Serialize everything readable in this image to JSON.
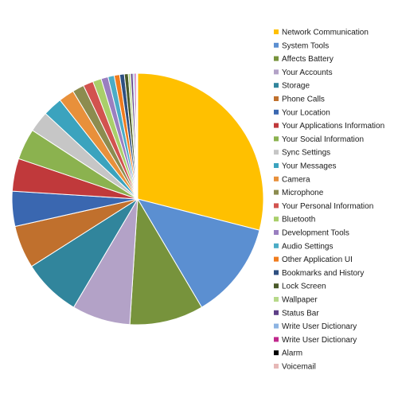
{
  "chart_data": {
    "type": "pie",
    "title": "",
    "legend_position": "right",
    "start_angle_deg": 0,
    "direction": "clockwise",
    "series": [
      {
        "name": "Network Communication",
        "value": 29.0,
        "color": "#FFC000"
      },
      {
        "name": "System Tools",
        "value": 12.5,
        "color": "#5B8FD1"
      },
      {
        "name": "Affects Battery",
        "value": 9.5,
        "color": "#77933C"
      },
      {
        "name": "Your Accounts",
        "value": 7.5,
        "color": "#B3A2C7"
      },
      {
        "name": "Storage",
        "value": 7.5,
        "color": "#31859C"
      },
      {
        "name": "Phone Calls",
        "value": 5.5,
        "color": "#C0702D"
      },
      {
        "name": "Your Location",
        "value": 4.5,
        "color": "#3A67B0"
      },
      {
        "name": "Your Applications Information",
        "value": 4.2,
        "color": "#C0393B"
      },
      {
        "name": "Your Social Information",
        "value": 4.0,
        "color": "#8BB24F"
      },
      {
        "name": "Sync Settings",
        "value": 2.7,
        "color": "#C6C6C6"
      },
      {
        "name": "Your Messages",
        "value": 2.5,
        "color": "#3BA3BE"
      },
      {
        "name": "Camera",
        "value": 2.0,
        "color": "#E8903B"
      },
      {
        "name": "Microphone",
        "value": 1.5,
        "color": "#8C8C4F"
      },
      {
        "name": "Your Personal Information",
        "value": 1.3,
        "color": "#D2534F"
      },
      {
        "name": "Bluetooth",
        "value": 1.1,
        "color": "#A9CF6A"
      },
      {
        "name": "Development Tools",
        "value": 0.9,
        "color": "#9A7FC0"
      },
      {
        "name": "Audio Settings",
        "value": 0.8,
        "color": "#4BACC6"
      },
      {
        "name": "Other Application UI",
        "value": 0.7,
        "color": "#F07C1E"
      },
      {
        "name": "Bookmarks and History",
        "value": 0.6,
        "color": "#2E4F80"
      },
      {
        "name": "Lock Screen",
        "value": 0.5,
        "color": "#4A5A2A"
      },
      {
        "name": "Wallpaper",
        "value": 0.3,
        "color": "#B7D98A"
      },
      {
        "name": "Status Bar",
        "value": 0.3,
        "color": "#5E3F87"
      },
      {
        "name": "Write User Dictionary",
        "value": 0.2,
        "color": "#8DB4E2"
      },
      {
        "name": "Write User Dictionary",
        "value": 0.2,
        "color": "#C0288C"
      },
      {
        "name": "Alarm",
        "value": 0.1,
        "color": "#000000"
      },
      {
        "name": "Voicemail",
        "value": 0.1,
        "color": "#E6B8B7"
      }
    ]
  }
}
